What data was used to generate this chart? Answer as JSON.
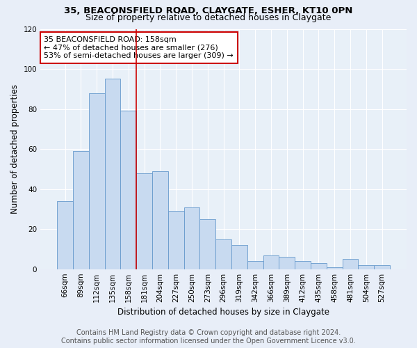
{
  "title_line1": "35, BEACONSFIELD ROAD, CLAYGATE, ESHER, KT10 0PN",
  "title_line2": "Size of property relative to detached houses in Claygate",
  "xlabel": "Distribution of detached houses by size in Claygate",
  "ylabel": "Number of detached properties",
  "categories": [
    "66sqm",
    "89sqm",
    "112sqm",
    "135sqm",
    "158sqm",
    "181sqm",
    "204sqm",
    "227sqm",
    "250sqm",
    "273sqm",
    "296sqm",
    "319sqm",
    "342sqm",
    "366sqm",
    "389sqm",
    "412sqm",
    "435sqm",
    "458sqm",
    "481sqm",
    "504sqm",
    "527sqm"
  ],
  "values": [
    34,
    59,
    88,
    95,
    79,
    48,
    49,
    29,
    31,
    25,
    15,
    12,
    4,
    7,
    6,
    4,
    3,
    1,
    5,
    2,
    2
  ],
  "highlight_index": 4,
  "bar_color": "#c8daf0",
  "bar_edge_color": "#6699cc",
  "highlight_line_color": "#cc0000",
  "ylim": [
    0,
    120
  ],
  "yticks": [
    0,
    20,
    40,
    60,
    80,
    100,
    120
  ],
  "annotation_text_line1": "35 BEACONSFIELD ROAD: 158sqm",
  "annotation_text_line2": "← 47% of detached houses are smaller (276)",
  "annotation_text_line3": "53% of semi-detached houses are larger (309) →",
  "annotation_box_color": "#ffffff",
  "annotation_box_edge_color": "#cc0000",
  "footer_line1": "Contains HM Land Registry data © Crown copyright and database right 2024.",
  "footer_line2": "Contains public sector information licensed under the Open Government Licence v3.0.",
  "background_color": "#e8eef8",
  "plot_background_color": "#e8f0f8",
  "grid_color": "#ffffff",
  "title_fontsize": 9.5,
  "subtitle_fontsize": 9,
  "axis_label_fontsize": 8.5,
  "tick_fontsize": 7.5,
  "annotation_fontsize": 8,
  "footer_fontsize": 7
}
